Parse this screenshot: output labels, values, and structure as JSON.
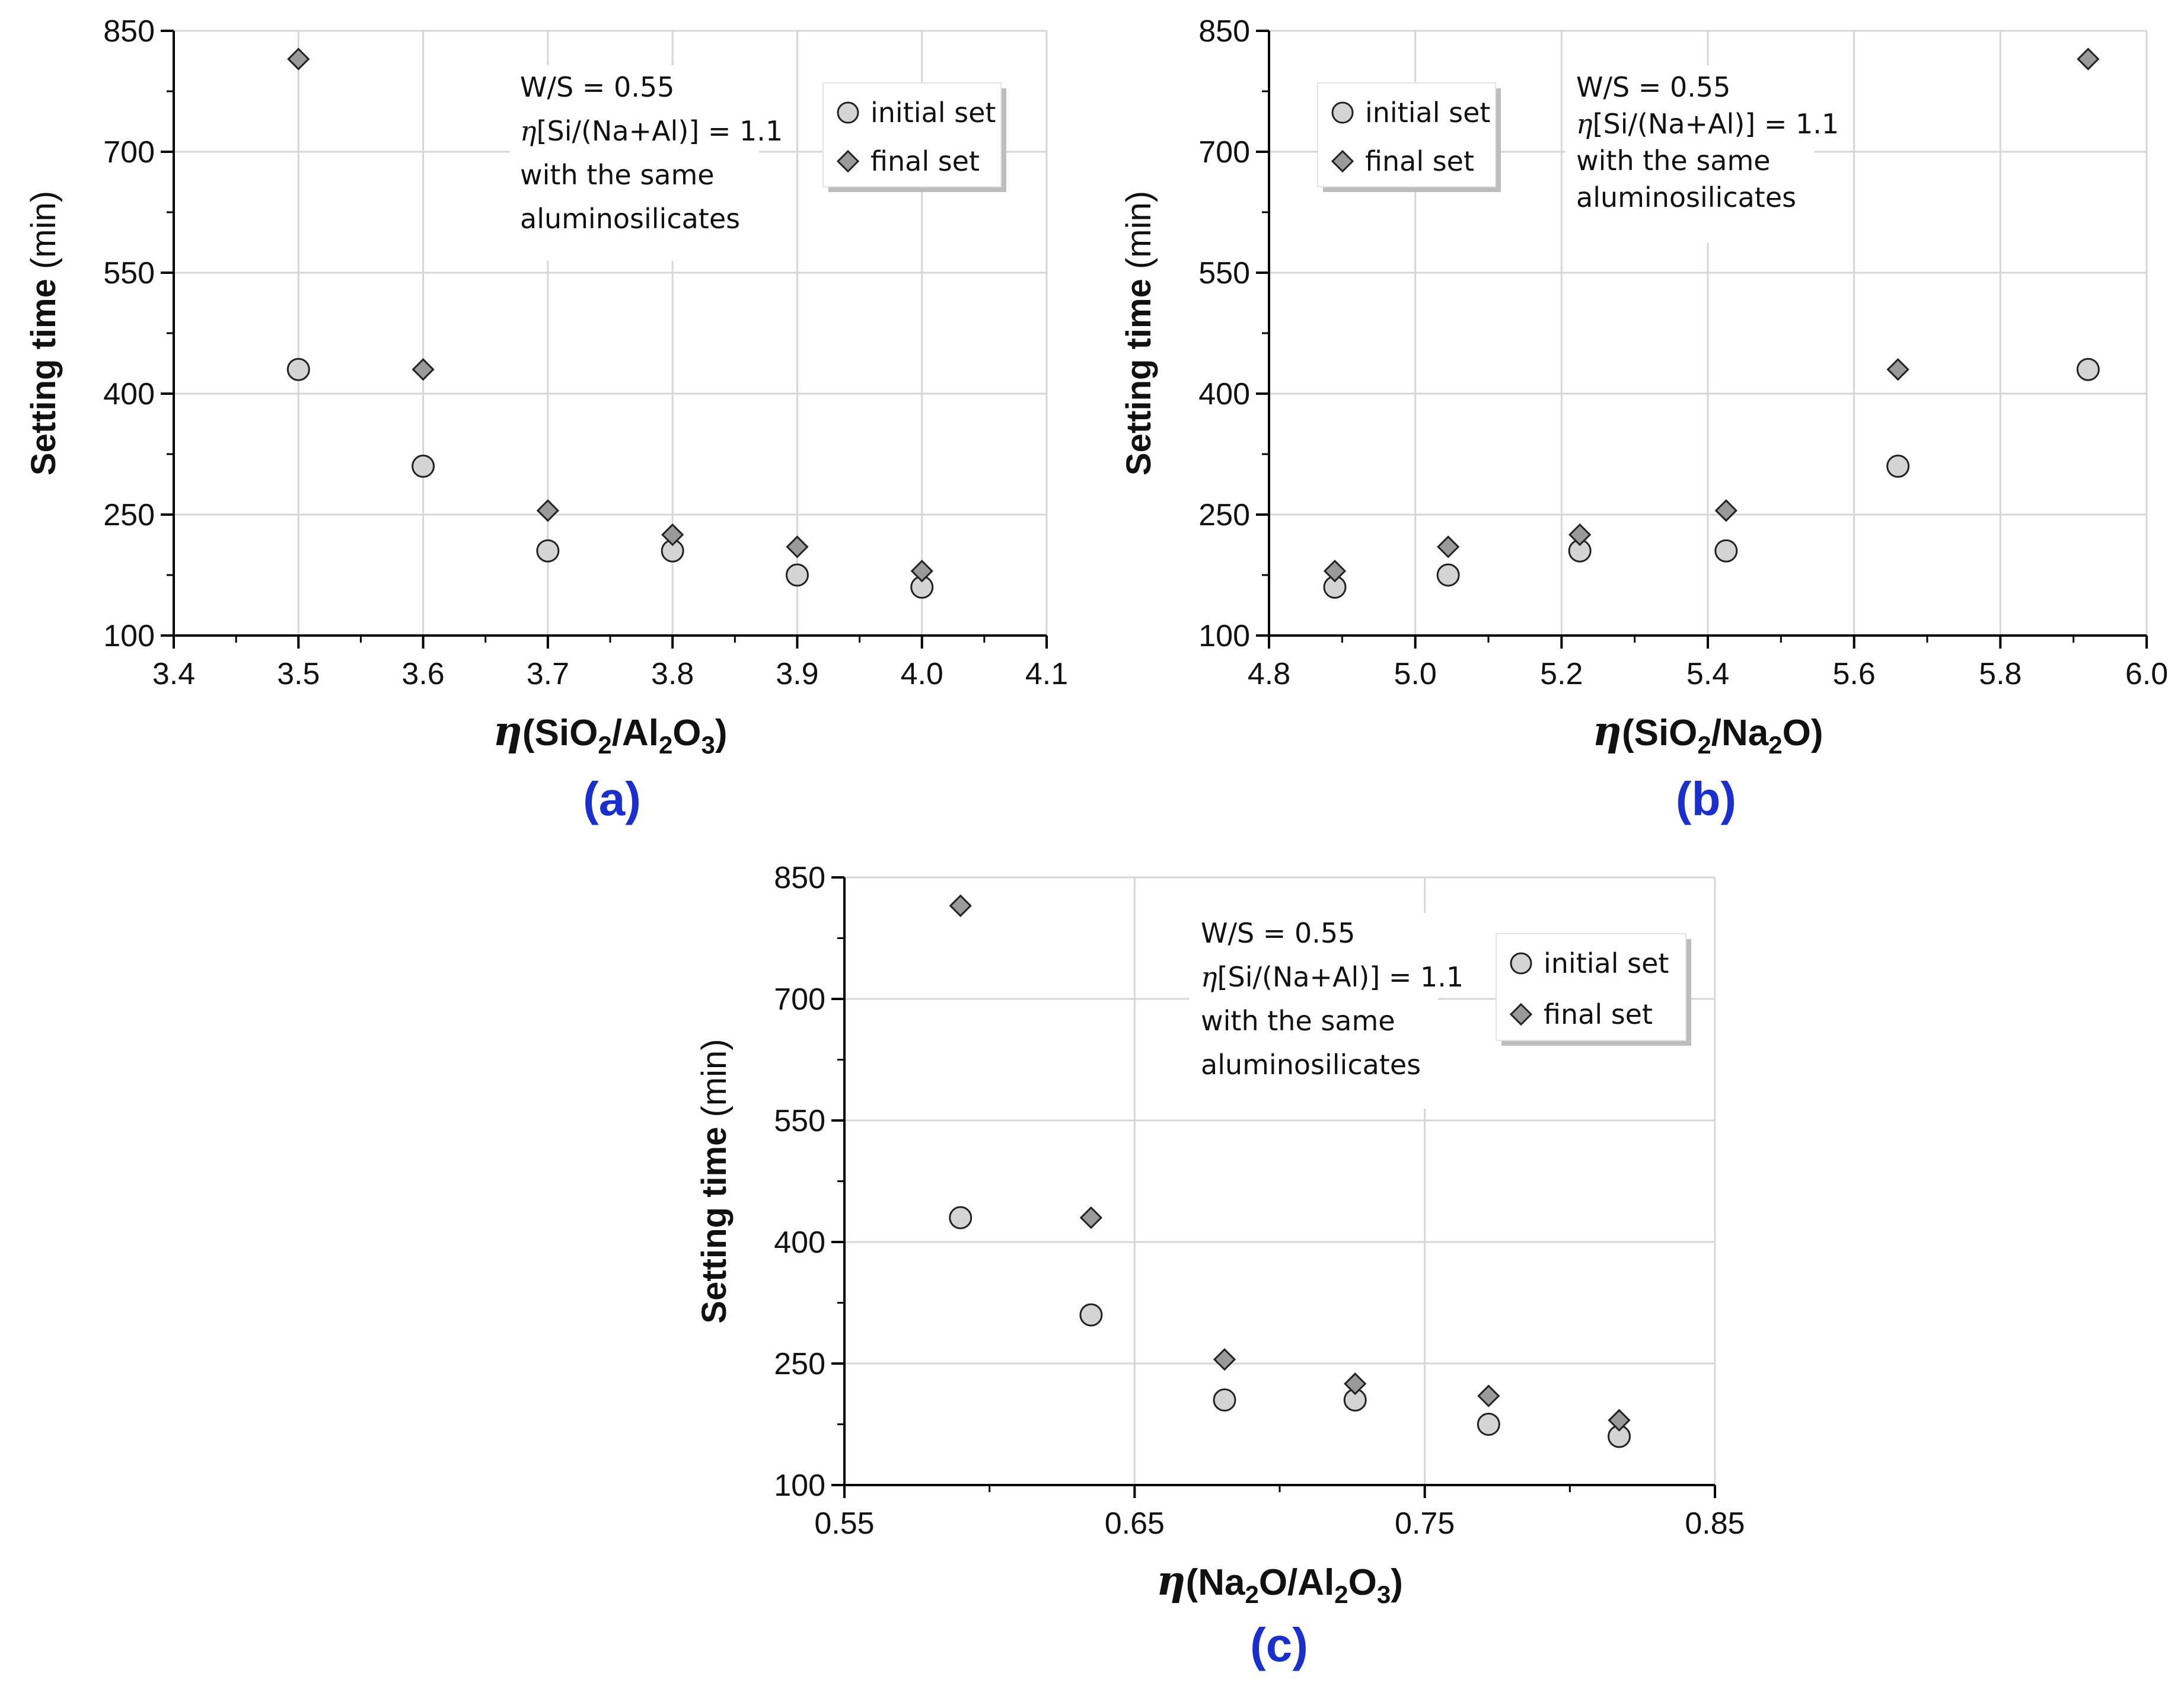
{
  "colors": {
    "initial_fill": "#d4d4d4",
    "final_fill": "#9a9a9a",
    "marker_stroke": "#222222",
    "grid": "#d6d6d6",
    "axis": "#000000",
    "panel_label": "#1a2fd0"
  },
  "chart_data": [
    {
      "id": "a",
      "type": "scatter",
      "panel_label": "(a)",
      "xlabel": {
        "prefix": "η",
        "parts": [
          {
            "t": "(SiO"
          },
          {
            "t": "2",
            "sub": true
          },
          {
            "t": "/Al"
          },
          {
            "t": "2",
            "sub": true
          },
          {
            "t": "O"
          },
          {
            "t": "3",
            "sub": true
          },
          {
            "t": ")"
          }
        ]
      },
      "ylabel": {
        "bold": "Setting time",
        "normal": " (min)"
      },
      "xlim": [
        3.4,
        4.1
      ],
      "ylim": [
        100,
        850
      ],
      "xticks": [
        3.4,
        3.5,
        3.6,
        3.7,
        3.8,
        3.9,
        4.0,
        4.1
      ],
      "xtick_labels": [
        "3.4",
        "3.5",
        "3.6",
        "3.7",
        "3.8",
        "3.9",
        "4.0",
        "4.1"
      ],
      "yticks": [
        100,
        250,
        400,
        550,
        700,
        850
      ],
      "ytick_labels": [
        "100",
        "250",
        "400",
        "550",
        "700",
        "850"
      ],
      "series": [
        {
          "name": "initial set",
          "marker": "circle",
          "x": [
            3.5,
            3.6,
            3.7,
            3.8,
            3.9,
            4.0
          ],
          "y": [
            430,
            310,
            205,
            205,
            175,
            160
          ]
        },
        {
          "name": "final set",
          "marker": "diamond",
          "x": [
            3.5,
            3.6,
            3.7,
            3.8,
            3.9,
            4.0
          ],
          "y": [
            815,
            430,
            255,
            225,
            210,
            180
          ]
        }
      ],
      "annotation": [
        "W/S = 0.55",
        "η[Si/(Na+Al)] = 1.1",
        "with the same",
        "aluminosilicates"
      ],
      "annotation_position": "top-center",
      "legend_position": "top-right"
    },
    {
      "id": "b",
      "type": "scatter",
      "panel_label": "(b)",
      "xlabel": {
        "prefix": "η",
        "parts": [
          {
            "t": "(SiO"
          },
          {
            "t": "2",
            "sub": true
          },
          {
            "t": "/Na"
          },
          {
            "t": "2",
            "sub": true
          },
          {
            "t": "O)"
          }
        ]
      },
      "ylabel": {
        "bold": "Setting time",
        "normal": " (min)"
      },
      "xlim": [
        4.8,
        6.0
      ],
      "ylim": [
        100,
        850
      ],
      "xticks": [
        4.8,
        5.0,
        5.2,
        5.4,
        5.6,
        5.8,
        6.0
      ],
      "xtick_labels": [
        "4.8",
        "5.0",
        "5.2",
        "5.4",
        "5.6",
        "5.8",
        "6.0"
      ],
      "yticks": [
        100,
        250,
        400,
        550,
        700,
        850
      ],
      "ytick_labels": [
        "100",
        "250",
        "400",
        "550",
        "700",
        "850"
      ],
      "series": [
        {
          "name": "initial set",
          "marker": "circle",
          "x": [
            4.89,
            5.045,
            5.225,
            5.425,
            5.66,
            5.92
          ],
          "y": [
            160,
            175,
            205,
            205,
            310,
            430
          ]
        },
        {
          "name": "final set",
          "marker": "diamond",
          "x": [
            4.89,
            5.045,
            5.225,
            5.425,
            5.66,
            5.92
          ],
          "y": [
            180,
            210,
            225,
            255,
            430,
            815
          ]
        }
      ],
      "annotation": [
        "W/S = 0.55",
        "η[Si/(Na+Al)] = 1.1",
        "with the same",
        "aluminosilicates"
      ],
      "annotation_position": "top-center",
      "legend_position": "top-left"
    },
    {
      "id": "c",
      "type": "scatter",
      "panel_label": "(c)",
      "xlabel": {
        "prefix": "η",
        "parts": [
          {
            "t": "(Na"
          },
          {
            "t": "2",
            "sub": true
          },
          {
            "t": "O/Al"
          },
          {
            "t": "2",
            "sub": true
          },
          {
            "t": "O"
          },
          {
            "t": "3",
            "sub": true
          },
          {
            "t": ")"
          }
        ]
      },
      "ylabel": {
        "bold": "Setting time",
        "normal": " (min)"
      },
      "xlim": [
        0.55,
        0.85
      ],
      "ylim": [
        100,
        850
      ],
      "xticks": [
        0.55,
        0.65,
        0.75,
        0.85
      ],
      "xtick_labels": [
        "0.55",
        "0.65",
        "0.75",
        "0.85"
      ],
      "yticks": [
        100,
        250,
        400,
        550,
        700,
        850
      ],
      "ytick_labels": [
        "100",
        "250",
        "400",
        "550",
        "700",
        "850"
      ],
      "series": [
        {
          "name": "initial set",
          "marker": "circle",
          "x": [
            0.59,
            0.635,
            0.681,
            0.726,
            0.772,
            0.817
          ],
          "y": [
            430,
            310,
            205,
            205,
            175,
            160
          ]
        },
        {
          "name": "final set",
          "marker": "diamond",
          "x": [
            0.59,
            0.635,
            0.681,
            0.726,
            0.772,
            0.817
          ],
          "y": [
            815,
            430,
            255,
            225,
            210,
            180
          ]
        }
      ],
      "annotation": [
        "W/S = 0.55",
        "η[Si/(Na+Al)] = 1.1",
        "with the same",
        "aluminosilicates"
      ],
      "annotation_position": "top-center",
      "legend_position": "top-right"
    }
  ]
}
